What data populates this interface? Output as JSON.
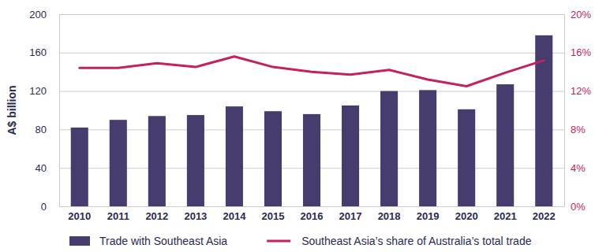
{
  "chart_data": {
    "type": "bar",
    "y_label": "A$ billion",
    "categories": [
      "2010",
      "2011",
      "2012",
      "2013",
      "2014",
      "2015",
      "2016",
      "2017",
      "2018",
      "2019",
      "2020",
      "2021",
      "2022"
    ],
    "series": [
      {
        "name": "Trade with Southeast Asia",
        "type": "bar",
        "color": "#463c6e",
        "values": [
          82,
          90,
          94,
          95,
          104,
          99,
          96,
          105,
          120,
          121,
          101,
          127,
          178
        ]
      },
      {
        "name": "Southeast Asia’s share of Australia’s total trade",
        "type": "line",
        "axis": "y2",
        "color": "#c4215f",
        "values": [
          14.4,
          14.4,
          14.9,
          14.5,
          15.6,
          14.5,
          14.0,
          13.7,
          14.2,
          13.2,
          12.5,
          13.9,
          15.2
        ]
      }
    ],
    "ylim": [
      0,
      200
    ],
    "yticks": [
      0,
      40,
      80,
      120,
      160,
      200
    ],
    "y2lim": [
      0,
      20
    ],
    "y2ticks": [
      {
        "value": 0,
        "label": "0%"
      },
      {
        "value": 4,
        "label": "4%"
      },
      {
        "value": 8,
        "label": "8%"
      },
      {
        "value": 12,
        "label": "12%"
      },
      {
        "value": 16,
        "label": "16%"
      },
      {
        "value": 20,
        "label": "20%"
      }
    ],
    "grid": true,
    "legend": "bottom"
  }
}
